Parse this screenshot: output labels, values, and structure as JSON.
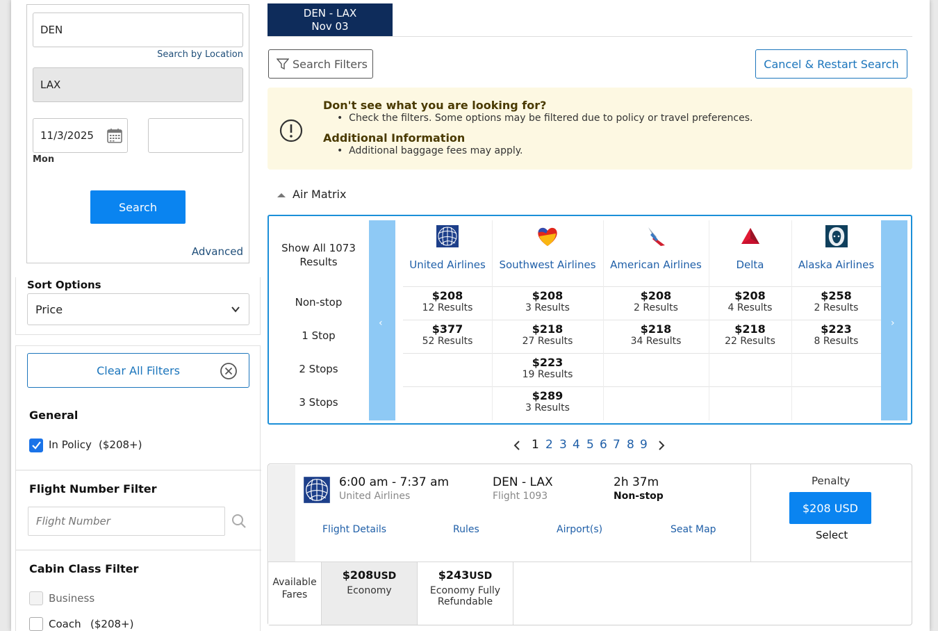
{
  "search": {
    "origin": "DEN",
    "search_by_location": "Search by Location",
    "destination": "LAX",
    "depart_date": "11/3/2025",
    "depart_day": "Mon",
    "return_date": "",
    "search_label": "Search",
    "advanced_label": "Advanced"
  },
  "sort": {
    "title": "Sort Options",
    "selected": "Price"
  },
  "filters": {
    "clear_all": "Clear All Filters",
    "general_title": "General",
    "in_policy_label": "In Policy",
    "in_policy_price": "($208+)",
    "in_policy_checked": true,
    "flight_number_title": "Flight Number Filter",
    "flight_number_placeholder": "Flight Number",
    "cabin_title": "Cabin Class Filter",
    "cabin_business": "Business",
    "cabin_coach": "Coach",
    "cabin_coach_price": "($208+)"
  },
  "tab": {
    "route": "DEN - LAX",
    "date": "Nov 03"
  },
  "toolbar": {
    "search_filters": "Search Filters",
    "cancel_restart": "Cancel & Restart Search"
  },
  "info": {
    "heading1": "Don't see what you are looking for?",
    "bullet1": "Check the filters. Some options may be filtered due to policy or travel preferences.",
    "heading2": "Additional Information",
    "bullet2": "Additional baggage fees may apply."
  },
  "air_matrix": {
    "title": "Air Matrix",
    "show_all": "Show All 1073 Results",
    "show_all_line1": "Show All 1073",
    "show_all_line2": "Results",
    "row_labels": [
      "Non-stop",
      "1 Stop",
      "2 Stops",
      "3 Stops"
    ],
    "airlines": [
      {
        "name": "United Airlines",
        "logo": "united-globe-icon",
        "cells": [
          {
            "price": "$208",
            "count": "12 Results"
          },
          {
            "price": "$377",
            "count": "52 Results"
          },
          null,
          null
        ]
      },
      {
        "name": "Southwest Airlines",
        "logo": "southwest-heart-icon",
        "cells": [
          {
            "price": "$208",
            "count": "3 Results"
          },
          {
            "price": "$218",
            "count": "27 Results"
          },
          {
            "price": "$223",
            "count": "19 Results"
          },
          {
            "price": "$289",
            "count": "3 Results"
          }
        ]
      },
      {
        "name": "American Airlines",
        "logo": "american-eagle-icon",
        "cells": [
          {
            "price": "$208",
            "count": "2 Results"
          },
          {
            "price": "$218",
            "count": "34 Results"
          },
          null,
          null
        ]
      },
      {
        "name": "Delta",
        "logo": "delta-triangle-icon",
        "cells": [
          {
            "price": "$208",
            "count": "4 Results"
          },
          {
            "price": "$218",
            "count": "22 Results"
          },
          null,
          null
        ]
      },
      {
        "name": "Alaska Airlines",
        "logo": "alaska-eskimo-icon",
        "cells": [
          {
            "price": "$258",
            "count": "2 Results"
          },
          {
            "price": "$223",
            "count": "8 Results"
          },
          null,
          null
        ]
      }
    ]
  },
  "pagination": {
    "current": "1",
    "pages": [
      "1",
      "2",
      "3",
      "4",
      "5",
      "6",
      "7",
      "8",
      "9"
    ]
  },
  "result": {
    "times": "6:00 am - 7:37 am",
    "airline": "United Airlines",
    "route": "DEN - LAX",
    "flight": "Flight 1093",
    "duration": "2h 37m",
    "stops": "Non-stop",
    "penalty": "Penalty",
    "price_button": "$208 USD",
    "select": "Select",
    "links": [
      "Flight Details",
      "Rules",
      "Airport(s)",
      "Seat Map"
    ],
    "available_fares_line1": "Available",
    "available_fares_line2": "Fares",
    "fares": [
      {
        "price": "$208",
        "currency": "USD",
        "name_line1": "Economy",
        "name_line2": ""
      },
      {
        "price": "$243",
        "currency": "USD",
        "name_line1": "Economy Fully",
        "name_line2": "Refundable"
      }
    ]
  },
  "colors": {
    "primary_blue": "#0a84f0",
    "navy": "#0e2c5b",
    "link_blue": "#1f5fa8",
    "info_bg": "#fdf8e2",
    "matrix_border": "#1b8fd8"
  }
}
